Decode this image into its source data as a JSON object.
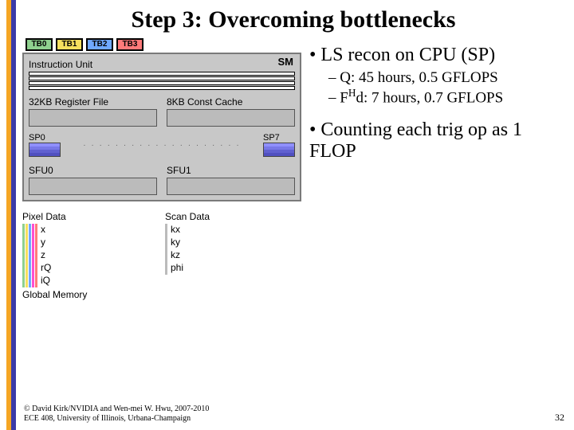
{
  "title": "Step 3: Overcoming bottlenecks",
  "footer_line1": "© David Kirk/NVIDIA and Wen-mei W. Hwu, 2007-2010",
  "footer_line2": "ECE 408, University of Illinois, Urbana-Champaign",
  "page_number": "32",
  "bullets": {
    "b1": "LS recon on CPU (SP)",
    "s1a": "Q: 45 hours, 0.5 GFLOPS",
    "s1b_pre": "F",
    "s1b_sup": "H",
    "s1b_post": "d: 7 hours, 0.7 GFLOPS",
    "b2": "Counting each trig op as 1 FLOP"
  },
  "diagram": {
    "sm_label": "SM",
    "tb": [
      {
        "label": "TB0",
        "bg": "#8fd18f"
      },
      {
        "label": "TB1",
        "bg": "#f6e05e"
      },
      {
        "label": "TB2",
        "bg": "#6fa8ff"
      },
      {
        "label": "TB3",
        "bg": "#ff7a7a"
      }
    ],
    "instruction_unit": "Instruction Unit",
    "reg_file": "32KB Register File",
    "const_cache": "8KB Const Cache",
    "sp0": "SP0",
    "sp7": "SP7",
    "sp_colors": [
      "#9090ff",
      "#7878e8",
      "#6060d0",
      "#5050c0"
    ],
    "sfu0": "SFU0",
    "sfu1": "SFU1",
    "pixel_data": "Pixel Data",
    "scan_data": "Scan Data",
    "pixel_items": [
      "x",
      "y",
      "z",
      "rQ",
      "iQ"
    ],
    "scan_items": [
      "kx",
      "ky",
      "kz",
      "phi"
    ],
    "pixel_bar_colors": [
      "#8fd18f",
      "#f6e05e",
      "#6fa8ff",
      "#ff4fd1",
      "#ff7a7a"
    ],
    "global_memory": "Global Memory",
    "block_bg": "#bdbdbd",
    "bg_gray": "#c8c8c8"
  }
}
